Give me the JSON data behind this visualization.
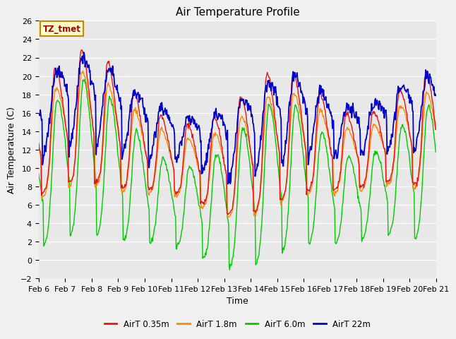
{
  "title": "Air Temperature Profile",
  "xlabel": "Time",
  "ylabel": "Air Temperature (C)",
  "ylim": [
    -2,
    26
  ],
  "x_tick_labels": [
    "Feb 6",
    "Feb 7",
    "Feb 8",
    "Feb 9",
    "Feb 10",
    "Feb 11",
    "Feb 12",
    "Feb 13",
    "Feb 14",
    "Feb 15",
    "Feb 16",
    "Feb 17",
    "Feb 18",
    "Feb 19",
    "Feb 20",
    "Feb 21"
  ],
  "colors": {
    "red": "#EE1111",
    "orange": "#FF8800",
    "green": "#00CC00",
    "blue": "#0000CC"
  },
  "legend_labels": [
    "AirT 0.35m",
    "AirT 1.8m",
    "AirT 6.0m",
    "AirT 22m"
  ],
  "annotation_text": "TZ_tmet",
  "annotation_facecolor": "#FFFFCC",
  "annotation_edgecolor": "#CC8800",
  "fig_bg": "#F0F0F0",
  "plot_bg": "#E8E8E8",
  "title_fontsize": 11,
  "axis_label_fontsize": 9,
  "tick_fontsize": 8
}
